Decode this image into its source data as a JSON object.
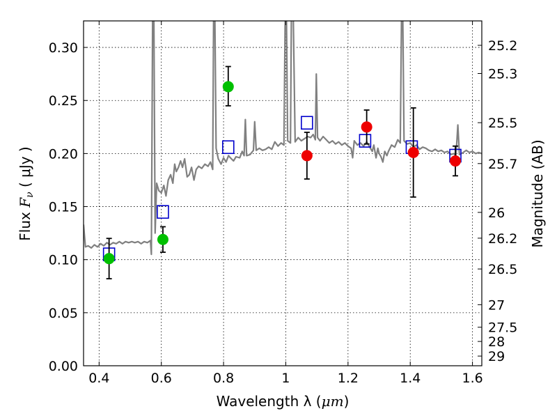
{
  "chart_data": {
    "type": "scatter",
    "xlabel_text": "Wavelength  λ (",
    "xlabel_unit": "μm",
    "xlabel_close": ")",
    "ylabel_text": "Flux ",
    "ylabel_symbol": "F",
    "ylabel_sub": "ν",
    "ylabel_unit": " ( μJy )",
    "y2label": "Magnitude (AB)",
    "xlim": [
      0.35,
      1.63
    ],
    "ylim": [
      0.0,
      0.325
    ],
    "grid": true,
    "x_ticks": [
      0.4,
      0.6,
      0.8,
      1.0,
      1.2,
      1.4,
      1.6
    ],
    "x_tick_labels": [
      "0.4",
      "0.6",
      "0.8",
      "1",
      "1.2",
      "1.4",
      "1.6"
    ],
    "y_ticks": [
      0.0,
      0.05,
      0.1,
      0.15,
      0.2,
      0.25,
      0.3
    ],
    "y_tick_labels": [
      "0.00",
      "0.05",
      "0.10",
      "0.15",
      "0.20",
      "0.25",
      "0.30"
    ],
    "mag_ticks": [
      {
        "label": "25.2",
        "mag": 25.2
      },
      {
        "label": "25.3",
        "mag": 25.3
      },
      {
        "label": "25.5",
        "mag": 25.5
      },
      {
        "label": "25.7",
        "mag": 25.7
      },
      {
        "label": "26",
        "mag": 26.0
      },
      {
        "label": "26.2",
        "mag": 26.2
      },
      {
        "label": "26.5",
        "mag": 26.5
      },
      {
        "label": "27",
        "mag": 27.0
      },
      {
        "label": "27.5",
        "mag": 27.5
      },
      {
        "label": "28",
        "mag": 28.0
      },
      {
        "label": "29",
        "mag": 29.0
      }
    ],
    "colors": {
      "spectrum": "#808080",
      "model_squares": "#0000cc",
      "green_points": "#00c000",
      "red_points": "#ee0000",
      "errorbar": "#000000"
    },
    "spectrum": [
      [
        0.35,
        0.133
      ],
      [
        0.356,
        0.112
      ],
      [
        0.365,
        0.113
      ],
      [
        0.375,
        0.111
      ],
      [
        0.385,
        0.114
      ],
      [
        0.395,
        0.112
      ],
      [
        0.405,
        0.115
      ],
      [
        0.415,
        0.113
      ],
      [
        0.425,
        0.116
      ],
      [
        0.435,
        0.114
      ],
      [
        0.445,
        0.116
      ],
      [
        0.455,
        0.115
      ],
      [
        0.465,
        0.117
      ],
      [
        0.475,
        0.115
      ],
      [
        0.485,
        0.117
      ],
      [
        0.495,
        0.116
      ],
      [
        0.505,
        0.117
      ],
      [
        0.515,
        0.116
      ],
      [
        0.525,
        0.117
      ],
      [
        0.535,
        0.115
      ],
      [
        0.545,
        0.117
      ],
      [
        0.555,
        0.116
      ],
      [
        0.565,
        0.118
      ],
      [
        0.568,
        0.105
      ],
      [
        0.572,
        0.33
      ],
      [
        0.576,
        0.33
      ],
      [
        0.58,
        0.125
      ],
      [
        0.585,
        0.172
      ],
      [
        0.592,
        0.165
      ],
      [
        0.6,
        0.163
      ],
      [
        0.608,
        0.17
      ],
      [
        0.615,
        0.16
      ],
      [
        0.622,
        0.175
      ],
      [
        0.63,
        0.18
      ],
      [
        0.637,
        0.172
      ],
      [
        0.643,
        0.19
      ],
      [
        0.648,
        0.183
      ],
      [
        0.655,
        0.187
      ],
      [
        0.662,
        0.193
      ],
      [
        0.668,
        0.187
      ],
      [
        0.675,
        0.195
      ],
      [
        0.683,
        0.178
      ],
      [
        0.69,
        0.18
      ],
      [
        0.697,
        0.187
      ],
      [
        0.705,
        0.175
      ],
      [
        0.712,
        0.185
      ],
      [
        0.72,
        0.188
      ],
      [
        0.73,
        0.186
      ],
      [
        0.74,
        0.19
      ],
      [
        0.75,
        0.188
      ],
      [
        0.758,
        0.192
      ],
      [
        0.765,
        0.185
      ],
      [
        0.768,
        0.33
      ],
      [
        0.772,
        0.33
      ],
      [
        0.776,
        0.205
      ],
      [
        0.783,
        0.195
      ],
      [
        0.792,
        0.19
      ],
      [
        0.8,
        0.196
      ],
      [
        0.808,
        0.192
      ],
      [
        0.816,
        0.198
      ],
      [
        0.822,
        0.196
      ],
      [
        0.832,
        0.193
      ],
      [
        0.84,
        0.197
      ],
      [
        0.852,
        0.196
      ],
      [
        0.86,
        0.202
      ],
      [
        0.866,
        0.198
      ],
      [
        0.87,
        0.232
      ],
      [
        0.874,
        0.198
      ],
      [
        0.885,
        0.199
      ],
      [
        0.896,
        0.203
      ],
      [
        0.9,
        0.23
      ],
      [
        0.905,
        0.203
      ],
      [
        0.915,
        0.205
      ],
      [
        0.925,
        0.203
      ],
      [
        0.935,
        0.204
      ],
      [
        0.945,
        0.206
      ],
      [
        0.955,
        0.204
      ],
      [
        0.965,
        0.211
      ],
      [
        0.975,
        0.207
      ],
      [
        0.985,
        0.21
      ],
      [
        0.994,
        0.208
      ],
      [
        0.998,
        0.33
      ],
      [
        1.002,
        0.33
      ],
      [
        1.006,
        0.212
      ],
      [
        1.015,
        0.21
      ],
      [
        1.018,
        0.33
      ],
      [
        1.024,
        0.33
      ],
      [
        1.03,
        0.211
      ],
      [
        1.04,
        0.215
      ],
      [
        1.05,
        0.212
      ],
      [
        1.06,
        0.214
      ],
      [
        1.07,
        0.216
      ],
      [
        1.08,
        0.215
      ],
      [
        1.088,
        0.218
      ],
      [
        1.095,
        0.213
      ],
      [
        1.098,
        0.275
      ],
      [
        1.102,
        0.215
      ],
      [
        1.11,
        0.212
      ],
      [
        1.12,
        0.216
      ],
      [
        1.13,
        0.213
      ],
      [
        1.14,
        0.21
      ],
      [
        1.15,
        0.212
      ],
      [
        1.16,
        0.209
      ],
      [
        1.17,
        0.211
      ],
      [
        1.18,
        0.208
      ],
      [
        1.19,
        0.21
      ],
      [
        1.2,
        0.207
      ],
      [
        1.21,
        0.205
      ],
      [
        1.215,
        0.196
      ],
      [
        1.22,
        0.212
      ],
      [
        1.23,
        0.208
      ],
      [
        1.24,
        0.21
      ],
      [
        1.25,
        0.207
      ],
      [
        1.26,
        0.211
      ],
      [
        1.27,
        0.206
      ],
      [
        1.278,
        0.202
      ],
      [
        1.283,
        0.208
      ],
      [
        1.29,
        0.196
      ],
      [
        1.296,
        0.205
      ],
      [
        1.3,
        0.2
      ],
      [
        1.306,
        0.197
      ],
      [
        1.312,
        0.192
      ],
      [
        1.318,
        0.202
      ],
      [
        1.325,
        0.198
      ],
      [
        1.33,
        0.202
      ],
      [
        1.34,
        0.208
      ],
      [
        1.35,
        0.206
      ],
      [
        1.36,
        0.213
      ],
      [
        1.368,
        0.21
      ],
      [
        1.372,
        0.33
      ],
      [
        1.376,
        0.33
      ],
      [
        1.38,
        0.212
      ],
      [
        1.39,
        0.209
      ],
      [
        1.4,
        0.21
      ],
      [
        1.41,
        0.206
      ],
      [
        1.42,
        0.208
      ],
      [
        1.43,
        0.204
      ],
      [
        1.44,
        0.206
      ],
      [
        1.45,
        0.205
      ],
      [
        1.46,
        0.203
      ],
      [
        1.47,
        0.202
      ],
      [
        1.48,
        0.204
      ],
      [
        1.49,
        0.202
      ],
      [
        1.5,
        0.203
      ],
      [
        1.51,
        0.201
      ],
      [
        1.52,
        0.202
      ],
      [
        1.53,
        0.199
      ],
      [
        1.54,
        0.2
      ],
      [
        1.547,
        0.198
      ],
      [
        1.553,
        0.227
      ],
      [
        1.558,
        0.199
      ],
      [
        1.57,
        0.201
      ],
      [
        1.58,
        0.203
      ],
      [
        1.59,
        0.201
      ],
      [
        1.6,
        0.202
      ],
      [
        1.61,
        0.2
      ],
      [
        1.62,
        0.201
      ],
      [
        1.63,
        0.2
      ]
    ],
    "model_squares": [
      {
        "x": 0.432,
        "y": 0.105
      },
      {
        "x": 0.605,
        "y": 0.145
      },
      {
        "x": 0.815,
        "y": 0.206
      },
      {
        "x": 1.068,
        "y": 0.229
      },
      {
        "x": 1.255,
        "y": 0.212
      },
      {
        "x": 1.405,
        "y": 0.206
      },
      {
        "x": 1.545,
        "y": 0.198
      }
    ],
    "green_points": [
      {
        "x": 0.432,
        "y": 0.101,
        "err_low": 0.019,
        "err_high": 0.019
      },
      {
        "x": 0.605,
        "y": 0.119,
        "err_low": 0.012,
        "err_high": 0.012
      },
      {
        "x": 0.815,
        "y": 0.263,
        "err_low": 0.018,
        "err_high": 0.019
      }
    ],
    "red_points": [
      {
        "x": 1.068,
        "y": 0.198,
        "err_low": 0.022,
        "err_high": 0.022
      },
      {
        "x": 1.26,
        "y": 0.225,
        "err_low": 0.016,
        "err_high": 0.016
      },
      {
        "x": 1.41,
        "y": 0.201,
        "err_low": 0.042,
        "err_high": 0.042
      },
      {
        "x": 1.545,
        "y": 0.193,
        "err_low": 0.014,
        "err_high": 0.014
      }
    ]
  }
}
